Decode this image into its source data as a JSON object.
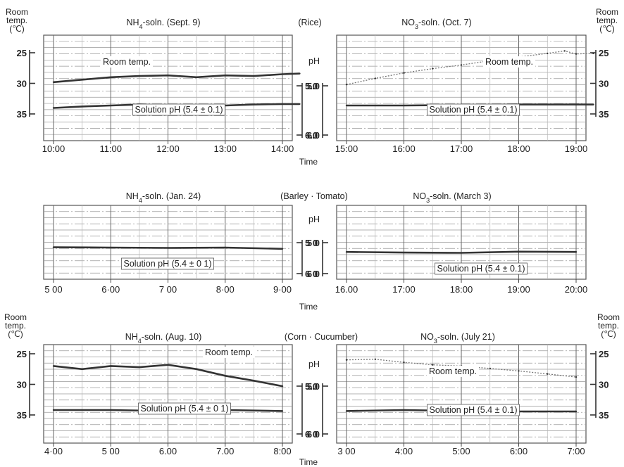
{
  "figure": {
    "time_label": "Time",
    "ph_label": "pH",
    "room_temp_label": [
      "Room",
      "temp.",
      "(℃)"
    ]
  },
  "chart_data": [
    {
      "type": "line",
      "title": "NH4-soln. (Sept. 9)",
      "group": "(Rice)",
      "x": [
        "10:00",
        "11:00",
        "12:00",
        "13:00",
        "14:00"
      ],
      "x_ticks": [
        "10:00",
        "11:00",
        "12:00",
        "13:00",
        "14:00"
      ],
      "xlabel": "Time",
      "y_left": {
        "label": "Room temp. (℃)",
        "ticks": [
          25,
          30,
          35
        ],
        "range": [
          25,
          35
        ]
      },
      "y_right": {
        "label": "pH",
        "ticks": [
          "5.0",
          "6.0"
        ],
        "range": [
          5.0,
          6.0
        ]
      },
      "series": [
        {
          "name": "Room temp.",
          "axis": "left",
          "points": [
            [
              0,
              29.8
            ],
            [
              0.5,
              29.4
            ],
            [
              1,
              29.0
            ],
            [
              1.5,
              28.8
            ],
            [
              2,
              28.7
            ],
            [
              2.5,
              29.0
            ],
            [
              3,
              28.7
            ],
            [
              3.5,
              28.8
            ],
            [
              4,
              28.5
            ],
            [
              4.3,
              28.4
            ]
          ]
        },
        {
          "name": "Solution pH (5.4 ± 0.1)",
          "axis": "right",
          "points": [
            [
              0,
              5.45
            ],
            [
              0.5,
              5.42
            ],
            [
              1,
              5.4
            ],
            [
              1.5,
              5.38
            ],
            [
              2,
              5.4
            ],
            [
              2.5,
              5.39
            ],
            [
              3,
              5.4
            ],
            [
              3.5,
              5.38
            ],
            [
              4,
              5.37
            ],
            [
              4.3,
              5.37
            ]
          ]
        }
      ]
    },
    {
      "type": "line",
      "title": "NO3-soln. (Oct. 7)",
      "x": [
        "15:00",
        "16:00",
        "17:00",
        "18:00",
        "19:00"
      ],
      "x_ticks": [
        "15:00",
        "16:00",
        "17:00",
        "18:00",
        "19:00"
      ],
      "xlabel": "Time",
      "y_left": {
        "label": "pH",
        "ticks": [
          "5.0",
          "6.0"
        ],
        "range": [
          5.0,
          6.0
        ]
      },
      "y_right": {
        "label": "Room temp. (℃)",
        "ticks": [
          25,
          30,
          35
        ],
        "range": [
          25,
          35
        ]
      },
      "series": [
        {
          "name": "Room temp.",
          "axis": "right",
          "points": [
            [
              0,
              30.2
            ],
            [
              0.5,
              29.2
            ],
            [
              1,
              28.3
            ],
            [
              1.5,
              27.6
            ],
            [
              2,
              27.0
            ],
            [
              2.5,
              26.3
            ],
            [
              3,
              25.7
            ],
            [
              3.5,
              25.1
            ],
            [
              3.8,
              24.7
            ],
            [
              4,
              25.2
            ],
            [
              4.3,
              25.1
            ]
          ]
        },
        {
          "name": "Solution pH (5.4 ± 0.1)",
          "axis": "left",
          "points": [
            [
              0,
              5.4
            ],
            [
              1,
              5.4
            ],
            [
              2,
              5.39
            ],
            [
              3,
              5.38
            ],
            [
              4,
              5.38
            ],
            [
              4.3,
              5.38
            ]
          ]
        }
      ]
    },
    {
      "type": "line",
      "title": "NH4-soln. (Jan. 24)",
      "group": "(Barley · Tomato)",
      "x": [
        "5 00",
        "6·00",
        "7 00",
        "8·00",
        "9·00"
      ],
      "x_ticks": [
        "5 00",
        "6·00",
        "7 00",
        "8·00",
        "9·00"
      ],
      "xlabel": "Time",
      "y_right": {
        "label": "pH",
        "ticks": [
          "5 0",
          "6 0"
        ],
        "range": [
          5.0,
          6.0
        ]
      },
      "series": [
        {
          "name": "Solution pH (5.4 ± 0 1)",
          "axis": "right",
          "points": [
            [
              0,
              5.15
            ],
            [
              1,
              5.16
            ],
            [
              2,
              5.17
            ],
            [
              3,
              5.16
            ],
            [
              4,
              5.2
            ]
          ]
        }
      ]
    },
    {
      "type": "line",
      "title": "NO3-soln. (March 3)",
      "x": [
        "16.00",
        "17:00",
        "18:00",
        "19:00",
        "20:00"
      ],
      "x_ticks": [
        "16.00",
        "17:00",
        "18:00",
        "19:00",
        "20:00"
      ],
      "xlabel": "Time",
      "y_left": {
        "label": "pH",
        "ticks": [
          "5 0",
          "6 0"
        ],
        "range": [
          5.0,
          6.0
        ]
      },
      "series": [
        {
          "name": "Solution pH (5.4 ± 0.1)",
          "axis": "left",
          "points": [
            [
              0,
              5.3
            ],
            [
              1,
              5.32
            ],
            [
              2,
              5.33
            ],
            [
              3,
              5.29
            ],
            [
              4,
              5.3
            ]
          ]
        }
      ]
    },
    {
      "type": "line",
      "title": "NH4-soln. (Aug. 10)",
      "group": "(Corn · Cucumber)",
      "x": [
        "4·00",
        "5 00",
        "6.00",
        "7.00",
        "8:00"
      ],
      "x_ticks": [
        "4·00",
        "5 00",
        "6.00",
        "7.00",
        "8:00"
      ],
      "xlabel": "Time",
      "y_left": {
        "label": "Room temp. (℃)",
        "ticks": [
          25,
          30,
          35
        ],
        "range": [
          25,
          35
        ]
      },
      "y_right": {
        "label": "pH",
        "ticks": [
          "5.0",
          "6 0"
        ],
        "range": [
          5.0,
          6.0
        ]
      },
      "series": [
        {
          "name": "Room temp.",
          "axis": "left",
          "points": [
            [
              0,
              27.0
            ],
            [
              0.5,
              27.5
            ],
            [
              1,
              27.0
            ],
            [
              1.5,
              27.2
            ],
            [
              2,
              26.8
            ],
            [
              2.5,
              27.5
            ],
            [
              3,
              28.6
            ],
            [
              3.5,
              29.4
            ],
            [
              4,
              30.3
            ]
          ]
        },
        {
          "name": "Solution pH (5.4 ± 0 1)",
          "axis": "right",
          "points": [
            [
              0,
              5.5
            ],
            [
              1,
              5.5
            ],
            [
              2,
              5.52
            ],
            [
              3,
              5.5
            ],
            [
              4,
              5.52
            ]
          ]
        }
      ]
    },
    {
      "type": "line",
      "title": "NO3-soln. (July 21)",
      "x": [
        "3 00",
        "4:00",
        "5:00",
        "6:00",
        "7:00"
      ],
      "x_ticks": [
        "3 00",
        "4:00",
        "5:00",
        "6:00",
        "7:00"
      ],
      "xlabel": "Time",
      "y_left": {
        "label": "pH",
        "ticks": [
          "5.0",
          "6 0"
        ],
        "range": [
          5.0,
          6.0
        ]
      },
      "y_right": {
        "label": "Room temp. (℃)",
        "ticks": [
          25,
          30,
          35
        ],
        "range": [
          25,
          35
        ]
      },
      "series": [
        {
          "name": "Room temp.",
          "axis": "right",
          "points": [
            [
              0,
              26.0
            ],
            [
              0.5,
              25.9
            ],
            [
              1,
              26.4
            ],
            [
              1.5,
              26.8
            ],
            [
              2,
              27.0
            ],
            [
              2.5,
              27.4
            ],
            [
              3,
              27.8
            ],
            [
              3.5,
              28.3
            ],
            [
              4,
              28.8
            ]
          ]
        },
        {
          "name": "Solution pH (5.4 ± 0.1)",
          "axis": "left",
          "points": [
            [
              0,
              5.52
            ],
            [
              1,
              5.5
            ],
            [
              2,
              5.52
            ],
            [
              3,
              5.53
            ],
            [
              4,
              5.53
            ]
          ]
        }
      ]
    }
  ]
}
